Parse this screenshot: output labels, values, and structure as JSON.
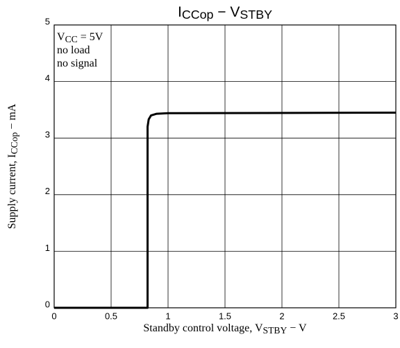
{
  "chart_data": {
    "type": "line",
    "title": [
      "I",
      "CCop",
      " − V",
      "STBY"
    ],
    "x_label": [
      "Standby control voltage, V",
      "STBY",
      " − V"
    ],
    "y_label": [
      "Supply current, I",
      "CCop",
      " − mA"
    ],
    "annotations": [
      [
        "V",
        "CC",
        " = 5V"
      ],
      [
        "no load"
      ],
      [
        "no signal"
      ]
    ],
    "x": [
      0,
      0.82,
      0.82,
      0.83,
      0.85,
      0.9,
      1,
      3
    ],
    "values": [
      0,
      0,
      3.2,
      3.33,
      3.4,
      3.43,
      3.44,
      3.45
    ],
    "color": "#000000",
    "xlim": [
      0,
      3
    ],
    "ylim": [
      0,
      5
    ],
    "xticks": [
      0,
      0.5,
      1,
      1.5,
      2,
      2.5,
      3
    ],
    "yticks": [
      0,
      1,
      2,
      3,
      4,
      5
    ],
    "grid": true
  }
}
